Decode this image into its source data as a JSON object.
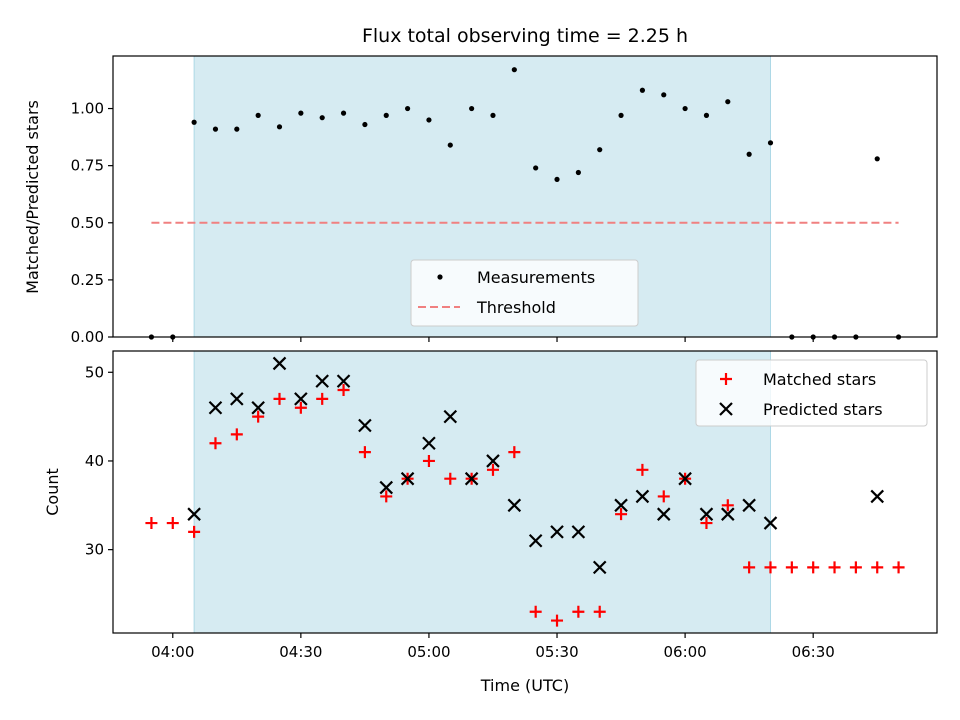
{
  "chart_data": [
    {
      "type": "scatter",
      "title": "Flux total observing time = 2.25 h",
      "xlabel": "",
      "ylabel": "Matched/Predicted stars",
      "xlim": [
        "03:46",
        "06:59"
      ],
      "ylim": [
        0.0,
        1.23
      ],
      "yticks": [
        "0.00",
        "0.25",
        "0.50",
        "0.75",
        "1.00"
      ],
      "grid": false,
      "shaded_interval": {
        "start": "04:05",
        "end": "06:20",
        "color": "#add8e6"
      },
      "legend_position": "lower-center",
      "series": [
        {
          "name": "Measurements",
          "marker": "dot",
          "color": "#000000",
          "x": [
            "03:55",
            "04:00",
            "04:05",
            "04:10",
            "04:15",
            "04:20",
            "04:25",
            "04:30",
            "04:35",
            "04:40",
            "04:45",
            "04:50",
            "04:55",
            "05:00",
            "05:05",
            "05:10",
            "05:15",
            "05:20",
            "05:25",
            "05:30",
            "05:35",
            "05:40",
            "05:45",
            "05:50",
            "05:55",
            "06:00",
            "06:05",
            "06:10",
            "06:15",
            "06:20",
            "06:25",
            "06:30",
            "06:35",
            "06:40",
            "06:45",
            "06:50"
          ],
          "y": [
            0.0,
            0.0,
            0.94,
            0.91,
            0.91,
            0.97,
            0.92,
            0.98,
            0.96,
            0.98,
            0.93,
            0.97,
            1.0,
            0.95,
            0.84,
            1.0,
            0.97,
            1.17,
            0.74,
            0.69,
            0.72,
            0.82,
            0.97,
            1.08,
            1.06,
            1.0,
            0.97,
            1.03,
            0.8,
            0.85,
            0.0,
            0.0,
            0.0,
            0.0,
            0.78,
            0.0
          ]
        },
        {
          "name": "Threshold",
          "marker": "dashed-line",
          "color": "#f08080",
          "x": [
            "03:55",
            "06:50"
          ],
          "y": [
            0.5,
            0.5
          ]
        }
      ]
    },
    {
      "type": "scatter",
      "title": "",
      "xlabel": "Time (UTC)",
      "ylabel": "Count",
      "xlim": [
        "03:46",
        "06:59"
      ],
      "ylim": [
        20.6,
        52.4
      ],
      "xticks": [
        "04:00",
        "04:30",
        "05:00",
        "05:30",
        "06:00",
        "06:30"
      ],
      "yticks": [
        "30",
        "40",
        "50"
      ],
      "grid": false,
      "shaded_interval": {
        "start": "04:05",
        "end": "06:20",
        "color": "#add8e6"
      },
      "legend_position": "top-right",
      "series": [
        {
          "name": "Matched stars",
          "marker": "plus",
          "color": "#ff0000",
          "x": [
            "03:55",
            "04:00",
            "04:05",
            "04:10",
            "04:15",
            "04:20",
            "04:25",
            "04:30",
            "04:35",
            "04:40",
            "04:45",
            "04:50",
            "04:55",
            "05:00",
            "05:05",
            "05:10",
            "05:15",
            "05:20",
            "05:25",
            "05:30",
            "05:35",
            "05:40",
            "05:45",
            "05:50",
            "05:55",
            "06:00",
            "06:05",
            "06:10",
            "06:15",
            "06:20",
            "06:25",
            "06:30",
            "06:35",
            "06:40",
            "06:45",
            "06:50"
          ],
          "y": [
            33,
            33,
            32,
            42,
            43,
            45,
            47,
            46,
            47,
            48,
            41,
            36,
            38,
            40,
            38,
            38,
            39,
            41,
            23,
            22,
            23,
            23,
            34,
            39,
            36,
            38,
            33,
            35,
            28,
            28,
            28,
            28,
            28,
            28,
            28,
            28
          ]
        },
        {
          "name": "Predicted stars",
          "marker": "x",
          "color": "#000000",
          "x": [
            "04:05",
            "04:10",
            "04:15",
            "04:20",
            "04:25",
            "04:30",
            "04:35",
            "04:40",
            "04:45",
            "04:50",
            "04:55",
            "05:00",
            "05:05",
            "05:10",
            "05:15",
            "05:20",
            "05:25",
            "05:30",
            "05:35",
            "05:40",
            "05:45",
            "05:50",
            "05:55",
            "06:00",
            "06:05",
            "06:10",
            "06:15",
            "06:20",
            "06:45"
          ],
          "y": [
            34,
            46,
            47,
            46,
            51,
            47,
            49,
            49,
            44,
            37,
            38,
            42,
            45,
            38,
            40,
            35,
            31,
            32,
            32,
            28,
            35,
            36,
            34,
            38,
            34,
            34,
            35,
            33,
            36
          ]
        }
      ]
    }
  ]
}
